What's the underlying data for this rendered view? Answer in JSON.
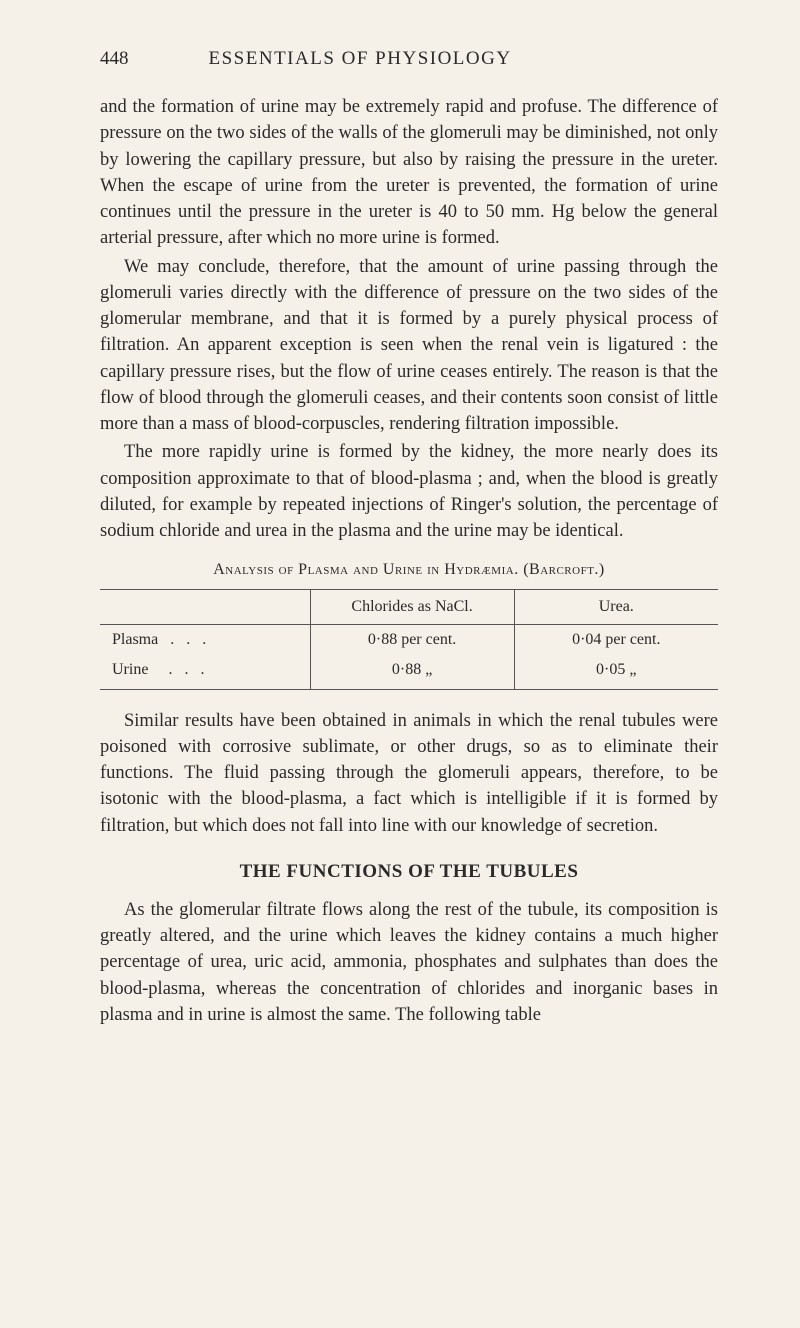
{
  "header": {
    "page_number": "448",
    "running_title": "ESSENTIALS OF PHYSIOLOGY"
  },
  "paragraphs": {
    "p1": "and the formation of urine may be extremely rapid and profuse. The difference of pressure on the two sides of the walls of the glomeruli may be diminished, not only by lowering the capillary pressure, but also by raising the pressure in the ureter. When the escape of urine from the ureter is prevented, the forma­tion of urine continues until the pressure in the ureter is 40 to 50 mm. Hg below the general arterial pressure, after which no more urine is formed.",
    "p2": "We may conclude, therefore, that the amount of urine passing through the glomeruli varies directly with the difference of pressure on the two sides of the glomerular membrane, and that it is formed by a purely physical process of filtration. An apparent exception is seen when the renal vein is ligatured : the capillary pressure rises, but the flow of urine ceases entirely. The reason is that the flow of blood through the glomeruli ceases, and their contents soon consist of little more than a mass of blood-corpuscles, rendering filtration impossible.",
    "p3": "The more rapidly urine is formed by the kidney, the more nearly does its composition approximate to that of blood-plasma ; and, when the blood is greatly diluted, for example by repeated injections of Ringer's solution, the percentage of sodium chloride and urea in the plasma and the urine may be identical.",
    "p4": "Similar results have been obtained in animals in which the renal tubules were poisoned with corrosive sublimate, or other drugs, so as to eliminate their functions. The fluid passing through the glomeruli appears, therefore, to be isotonic with the blood-plasma, a fact which is intelligible if it is formed by filtration, but which does not fall into line with our knowledge of secretion.",
    "p5": "As the glomerular filtrate flows along the rest of the tubule, its composition is greatly altered, and the urine which leaves the kidney contains a much higher percentage of urea, uric acid, ammonia, phosphates and sulphates than does the blood-plasma, whereas the concentration of chlorides and inorganic bases in plasma and in urine is almost the same. The following table"
  },
  "table": {
    "caption": "Analysis of Plasma and Urine in Hydræmia.  (Barcroft.)",
    "headers": [
      "",
      "Chlorides as NaCl.",
      "Urea."
    ],
    "rows": [
      {
        "label": "Plasma",
        "dots": "...",
        "chlorides": "0·88 per cent.",
        "urea": "0·04 per cent."
      },
      {
        "label": "Urine",
        "dots": "...",
        "chlorides": "0·88    „",
        "urea": "0·05    „"
      }
    ]
  },
  "section_heading": "THE FUNCTIONS OF THE TUBULES"
}
